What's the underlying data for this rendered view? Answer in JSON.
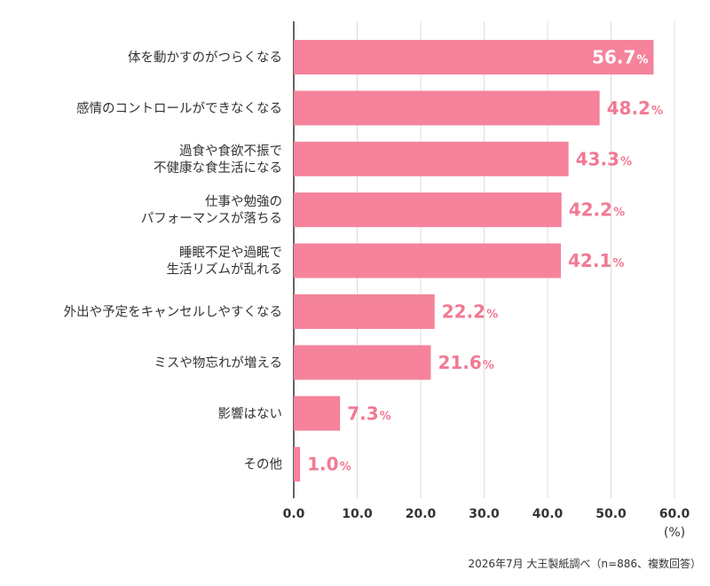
{
  "chart_data": {
    "type": "bar",
    "orientation": "horizontal",
    "categories": [
      [
        "体を動かすのがつらくなる"
      ],
      [
        "感情のコントロールができなくなる"
      ],
      [
        "過食や食欲不振で",
        "不健康な食生活になる"
      ],
      [
        "仕事や勉強の",
        "パフォーマンスが落ちる"
      ],
      [
        "睡眠不足や過眠で",
        "生活リズムが乱れる"
      ],
      [
        "外出や予定をキャンセルしやすくなる"
      ],
      [
        "ミスや物忘れが増える"
      ],
      [
        "影響はない"
      ],
      [
        "その他"
      ]
    ],
    "values": [
      56.7,
      48.2,
      43.3,
      42.2,
      42.1,
      22.2,
      21.6,
      7.3,
      1.0
    ],
    "value_labels": [
      "56.7",
      "48.2",
      "43.3",
      "42.2",
      "42.1",
      "22.2",
      "21.6",
      "7.3",
      "1.0"
    ],
    "value_suffix": "%",
    "xlim": [
      0,
      60
    ],
    "xticks": [
      "0.0",
      "10.0",
      "20.0",
      "30.0",
      "40.0",
      "50.0",
      "60.0"
    ],
    "x_unit": "(%)",
    "grid": true,
    "bar_color": "#f5839b",
    "label_color": "#f17a93",
    "inside_label_color": "#ffffff"
  },
  "source_note": "2026年7月 大王製紙調べ（n=886、複数回答）"
}
